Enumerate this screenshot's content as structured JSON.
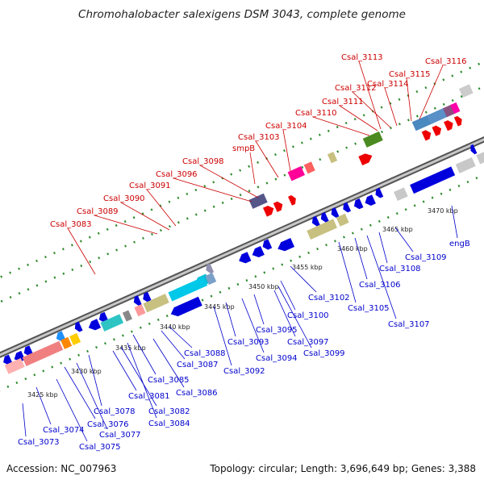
{
  "title": "Chromohalobacter salexigens DSM 3043, complete genome",
  "footer": {
    "accession": "Accession: NC_007963",
    "summary": "Topology: circular; Length: 3,696,649 bp; Genes: 3,388"
  },
  "colors": {
    "backbone": "#888888",
    "forward_dots": "#2e8b2e",
    "top_label": "#cc0000",
    "bottom_label": "#0000cc",
    "blue": "#0000dd",
    "red": "#ee0000"
  },
  "axis_ticks": [
    "3425 kbp",
    "3430 kbp",
    "3435 kbp",
    "3440 kbp",
    "3445 kbp",
    "3450 kbp",
    "3455 kbp",
    "3460 kbp",
    "3465 kbp",
    "3470 kbp"
  ],
  "top_labels": [
    "Csal_3083",
    "Csal_3089",
    "Csal_3090",
    "Csal_3091",
    "Csal_3096",
    "Csal_3098",
    "smpB",
    "Csal_3103",
    "Csal_3104",
    "Csal_3110",
    "Csal_3111",
    "Csal_3112",
    "Csal_3113",
    "Csal_3114",
    "Csal_3115",
    "Csal_3116"
  ],
  "bottom_labels": [
    "Csal_3073",
    "Csal_3074",
    "Csal_3075",
    "Csal_3076",
    "Csal_3077",
    "Csal_3078",
    "Csal_3081",
    "Csal_3082",
    "Csal_3084",
    "Csal_3085",
    "Csal_3086",
    "Csal_3087",
    "Csal_3088",
    "Csal_3092",
    "Csal_3093",
    "Csal_3094",
    "Csal_3095",
    "Csal_3097",
    "Csal_3099",
    "Csal_3100",
    "Csal_3102",
    "Csal_3105",
    "Csal_3106",
    "Csal_3107",
    "Csal_3108",
    "Csal_3109",
    "engB"
  ]
}
